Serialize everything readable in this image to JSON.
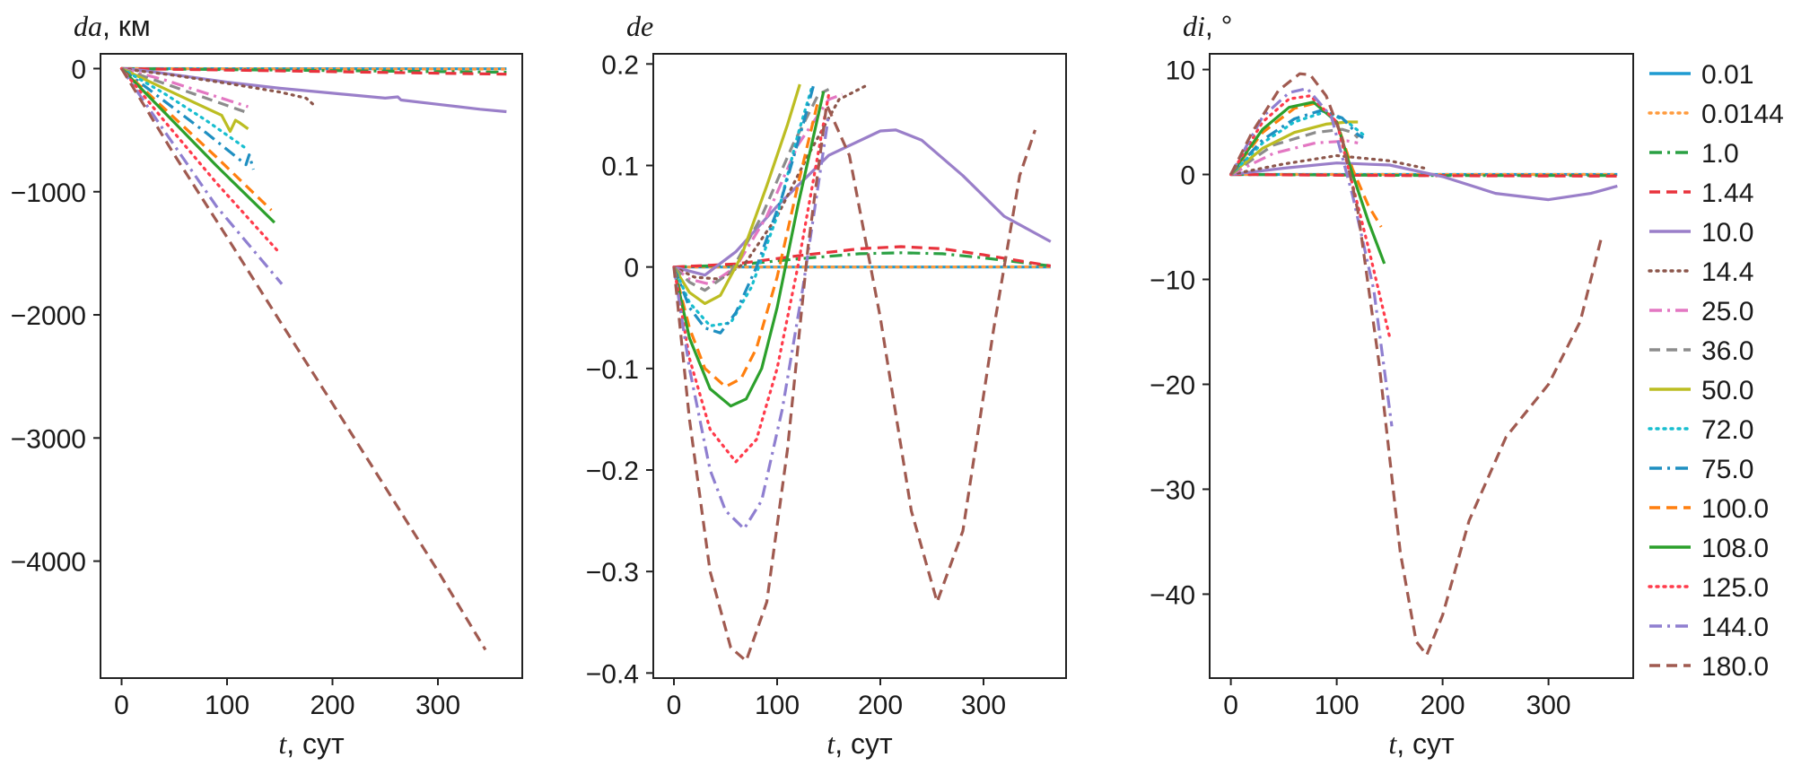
{
  "figure": {
    "legend": [
      {
        "label": "0.01",
        "color": "#1f9bd1",
        "dash": "solid"
      },
      {
        "label": "0.0144",
        "color": "#ff9a3c",
        "dash": "dot"
      },
      {
        "label": "1.0",
        "color": "#2aa043",
        "dash": "dashdot"
      },
      {
        "label": "1.44",
        "color": "#e8323c",
        "dash": "dash"
      },
      {
        "label": "10.0",
        "color": "#9a7fc9",
        "dash": "solid"
      },
      {
        "label": "14.4",
        "color": "#8c564b",
        "dash": "dot"
      },
      {
        "label": "25.0",
        "color": "#e377c2",
        "dash": "dashdot"
      },
      {
        "label": "36.0",
        "color": "#8c8c8c",
        "dash": "dash"
      },
      {
        "label": "50.0",
        "color": "#bcbd22",
        "dash": "solid"
      },
      {
        "label": "72.0",
        "color": "#17becf",
        "dash": "dot"
      },
      {
        "label": "75.0",
        "color": "#1f8fc1",
        "dash": "dashdot"
      },
      {
        "label": "100.0",
        "color": "#ff7f0e",
        "dash": "dash"
      },
      {
        "label": "108.0",
        "color": "#2ca02c",
        "dash": "solid"
      },
      {
        "label": "125.0",
        "color": "#ff3b4b",
        "dash": "dot"
      },
      {
        "label": "144.0",
        "color": "#8f7fd0",
        "dash": "dashdot"
      },
      {
        "label": "180.0",
        "color": "#a05a50",
        "dash": "dash"
      }
    ]
  },
  "chart_data": [
    {
      "type": "line",
      "panel": "da",
      "title_var": "da",
      "title_unit": ", км",
      "xlabel_var": "t",
      "xlabel_unit": ", сут",
      "xlim": [
        -20,
        380
      ],
      "ylim": [
        -4950,
        120
      ],
      "xticks": [
        0,
        100,
        200,
        300
      ],
      "xtick_labels": [
        "0",
        "100",
        "200",
        "300"
      ],
      "yticks": [
        0,
        -1000,
        -2000,
        -3000,
        -4000
      ],
      "ytick_labels": [
        "0",
        "−1000",
        "−2000",
        "−3000",
        "−4000"
      ],
      "series": [
        {
          "name": "0.01",
          "x": [
            0,
            100,
            200,
            365
          ],
          "y": [
            0,
            -1,
            -1,
            -2
          ]
        },
        {
          "name": "0.0144",
          "x": [
            0,
            100,
            200,
            365
          ],
          "y": [
            0,
            -2,
            -3,
            -4
          ]
        },
        {
          "name": "1.0",
          "x": [
            0,
            100,
            200,
            365
          ],
          "y": [
            0,
            -8,
            -16,
            -30
          ]
        },
        {
          "name": "1.44",
          "x": [
            0,
            100,
            200,
            365
          ],
          "y": [
            0,
            -12,
            -25,
            -45
          ]
        },
        {
          "name": "10.0",
          "x": [
            0,
            20,
            50,
            100,
            150,
            200,
            250,
            262,
            265,
            300,
            340,
            365
          ],
          "y": [
            0,
            -15,
            -50,
            -110,
            -160,
            -200,
            -240,
            -230,
            -255,
            -290,
            -330,
            -350
          ]
        },
        {
          "name": "14.4",
          "x": [
            0,
            50,
            100,
            150,
            175,
            183
          ],
          "y": [
            0,
            -55,
            -120,
            -190,
            -240,
            -300
          ]
        },
        {
          "name": "25.0",
          "x": [
            0,
            40,
            80,
            120
          ],
          "y": [
            0,
            -90,
            -200,
            -310
          ]
        },
        {
          "name": "36.0",
          "x": [
            0,
            40,
            80,
            120
          ],
          "y": [
            0,
            -120,
            -240,
            -360
          ]
        },
        {
          "name": "50.0",
          "x": [
            0,
            30,
            60,
            95,
            103,
            108,
            112,
            120
          ],
          "y": [
            0,
            -120,
            -240,
            -380,
            -510,
            -420,
            -440,
            -490
          ]
        },
        {
          "name": "72.0",
          "x": [
            0,
            40,
            80,
            120
          ],
          "y": [
            0,
            -200,
            -420,
            -660
          ]
        },
        {
          "name": "75.0",
          "x": [
            0,
            40,
            80,
            118,
            121,
            125
          ],
          "y": [
            0,
            -260,
            -520,
            -780,
            -700,
            -820
          ]
        },
        {
          "name": "100.0",
          "x": [
            0,
            40,
            90,
            142
          ],
          "y": [
            0,
            -320,
            -720,
            -1150
          ]
        },
        {
          "name": "108.0",
          "x": [
            0,
            40,
            90,
            145
          ],
          "y": [
            0,
            -350,
            -790,
            -1250
          ]
        },
        {
          "name": "125.0",
          "x": [
            0,
            40,
            90,
            148
          ],
          "y": [
            0,
            -420,
            -930,
            -1480
          ]
        },
        {
          "name": "144.0",
          "x": [
            0,
            40,
            90,
            152
          ],
          "y": [
            0,
            -500,
            -1120,
            -1750
          ]
        },
        {
          "name": "180.0",
          "x": [
            0,
            50,
            100,
            150,
            200,
            250,
            300,
            345
          ],
          "y": [
            0,
            -700,
            -1370,
            -2050,
            -2720,
            -3400,
            -4080,
            -4720
          ]
        }
      ]
    },
    {
      "type": "line",
      "panel": "de",
      "title_var": "de",
      "title_unit": "",
      "xlabel_var": "t",
      "xlabel_unit": ", сут",
      "xlim": [
        -20,
        380
      ],
      "ylim": [
        -0.405,
        0.21
      ],
      "xticks": [
        0,
        100,
        200,
        300
      ],
      "xtick_labels": [
        "0",
        "100",
        "200",
        "300"
      ],
      "yticks": [
        0.2,
        0.1,
        0,
        -0.1,
        -0.2,
        -0.3,
        -0.4
      ],
      "ytick_labels": [
        "0.2",
        "0.1",
        "0",
        "−0.1",
        "−0.2",
        "−0.3",
        "−0.4"
      ],
      "series": [
        {
          "name": "0.01",
          "x": [
            0,
            100,
            200,
            365
          ],
          "y": [
            0,
            0,
            0,
            0
          ]
        },
        {
          "name": "0.0144",
          "x": [
            0,
            100,
            200,
            365
          ],
          "y": [
            0,
            0,
            0,
            0.0002
          ]
        },
        {
          "name": "1.0",
          "x": [
            0,
            60,
            120,
            180,
            220,
            260,
            300,
            365
          ],
          "y": [
            0,
            0.002,
            0.008,
            0.013,
            0.014,
            0.013,
            0.009,
            0.001
          ]
        },
        {
          "name": "1.44",
          "x": [
            0,
            60,
            120,
            180,
            220,
            260,
            300,
            365
          ],
          "y": [
            0,
            0.003,
            0.011,
            0.018,
            0.02,
            0.018,
            0.012,
            0.001
          ]
        },
        {
          "name": "10.0",
          "x": [
            0,
            30,
            60,
            100,
            150,
            200,
            215,
            240,
            280,
            320,
            365
          ],
          "y": [
            0,
            -0.008,
            0.015,
            0.06,
            0.11,
            0.134,
            0.135,
            0.125,
            0.09,
            0.05,
            0.025
          ]
        },
        {
          "name": "14.4",
          "x": [
            0,
            20,
            45,
            70,
            100,
            130,
            160,
            185
          ],
          "y": [
            0,
            -0.01,
            -0.012,
            0.005,
            0.05,
            0.11,
            0.165,
            0.178
          ]
        },
        {
          "name": "25.0",
          "x": [
            0,
            15,
            35,
            60,
            90,
            120,
            150,
            163
          ],
          "y": [
            0,
            -0.012,
            -0.017,
            0.0,
            0.05,
            0.12,
            0.165,
            0.17
          ]
        },
        {
          "name": "36.0",
          "x": [
            0,
            15,
            30,
            55,
            85,
            115,
            140,
            150
          ],
          "y": [
            0,
            -0.015,
            -0.023,
            -0.005,
            0.05,
            0.12,
            0.17,
            0.175
          ]
        },
        {
          "name": "50.0",
          "x": [
            0,
            15,
            30,
            45,
            65,
            90,
            110,
            122
          ],
          "y": [
            0,
            -0.025,
            -0.036,
            -0.028,
            0.01,
            0.08,
            0.14,
            0.18
          ]
        },
        {
          "name": "72.0",
          "x": [
            0,
            15,
            35,
            55,
            75,
            100,
            120,
            133
          ],
          "y": [
            0,
            -0.035,
            -0.058,
            -0.055,
            -0.02,
            0.05,
            0.13,
            0.175
          ]
        },
        {
          "name": "75.0",
          "x": [
            0,
            15,
            30,
            45,
            60,
            80,
            105,
            125,
            135
          ],
          "y": [
            0,
            -0.04,
            -0.06,
            -0.065,
            -0.045,
            0.0,
            0.07,
            0.14,
            0.178
          ]
        },
        {
          "name": "100.0",
          "x": [
            0,
            15,
            30,
            50,
            65,
            80,
            100,
            120,
            140
          ],
          "y": [
            0,
            -0.06,
            -0.1,
            -0.118,
            -0.11,
            -0.08,
            -0.01,
            0.08,
            0.165
          ]
        },
        {
          "name": "108.0",
          "x": [
            0,
            15,
            35,
            55,
            70,
            85,
            100,
            120,
            145
          ],
          "y": [
            0,
            -0.07,
            -0.12,
            -0.137,
            -0.13,
            -0.1,
            -0.04,
            0.06,
            0.173
          ]
        },
        {
          "name": "125.0",
          "x": [
            0,
            15,
            35,
            60,
            80,
            100,
            120,
            150
          ],
          "y": [
            0,
            -0.09,
            -0.16,
            -0.192,
            -0.17,
            -0.1,
            0.0,
            0.17
          ]
        },
        {
          "name": "144.0",
          "x": [
            0,
            15,
            35,
            50,
            68,
            85,
            105,
            125,
            150
          ],
          "y": [
            0,
            -0.1,
            -0.2,
            -0.24,
            -0.258,
            -0.23,
            -0.14,
            -0.02,
            0.15
          ]
        },
        {
          "name": "180.0",
          "x": [
            0,
            15,
            35,
            55,
            70,
            90,
            110,
            130,
            148,
            170,
            200,
            230,
            255,
            280,
            310,
            335,
            350
          ],
          "y": [
            0,
            -0.15,
            -0.3,
            -0.375,
            -0.388,
            -0.33,
            -0.18,
            0.02,
            0.16,
            0.11,
            -0.05,
            -0.24,
            -0.33,
            -0.26,
            -0.06,
            0.09,
            0.135
          ]
        }
      ]
    },
    {
      "type": "line",
      "panel": "di",
      "title_var": "di",
      "title_unit": ", °",
      "xlabel_var": "t",
      "xlabel_unit": ", сут",
      "xlim": [
        -20,
        380
      ],
      "ylim": [
        -48,
        11.5
      ],
      "xticks": [
        0,
        100,
        200,
        300
      ],
      "xtick_labels": [
        "0",
        "100",
        "200",
        "300"
      ],
      "yticks": [
        10,
        0,
        -10,
        -20,
        -30,
        -40
      ],
      "ytick_labels": [
        "10",
        "0",
        "−10",
        "−20",
        "−30",
        "−40"
      ],
      "series": [
        {
          "name": "0.01",
          "x": [
            0,
            100,
            200,
            365
          ],
          "y": [
            0,
            0,
            0,
            0
          ]
        },
        {
          "name": "0.0144",
          "x": [
            0,
            100,
            200,
            365
          ],
          "y": [
            0,
            0,
            0,
            0
          ]
        },
        {
          "name": "1.0",
          "x": [
            0,
            100,
            200,
            365
          ],
          "y": [
            0,
            -0.05,
            -0.1,
            -0.1
          ]
        },
        {
          "name": "1.44",
          "x": [
            0,
            100,
            200,
            365
          ],
          "y": [
            0,
            -0.07,
            -0.12,
            -0.15
          ]
        },
        {
          "name": "10.0",
          "x": [
            0,
            50,
            100,
            150,
            200,
            250,
            300,
            340,
            365
          ],
          "y": [
            0,
            0.6,
            1.1,
            0.9,
            -0.2,
            -1.8,
            -2.4,
            -1.8,
            -1.1
          ]
        },
        {
          "name": "14.4",
          "x": [
            0,
            50,
            100,
            150,
            183
          ],
          "y": [
            0,
            1.0,
            1.8,
            1.3,
            0.6
          ]
        },
        {
          "name": "25.0",
          "x": [
            0,
            40,
            80,
            110,
            120
          ],
          "y": [
            0,
            2.0,
            3.0,
            3.2,
            3.0
          ]
        },
        {
          "name": "36.0",
          "x": [
            0,
            40,
            80,
            105,
            115,
            120
          ],
          "y": [
            0,
            2.8,
            4.0,
            4.3,
            4.0,
            3.5
          ]
        },
        {
          "name": "50.0",
          "x": [
            0,
            30,
            60,
            90,
            110,
            120
          ],
          "y": [
            0,
            2.5,
            4.0,
            4.8,
            5.0,
            5.0
          ]
        },
        {
          "name": "72.0",
          "x": [
            0,
            30,
            60,
            90,
            110,
            125
          ],
          "y": [
            0,
            3.0,
            5.0,
            6.0,
            5.0,
            3.8
          ]
        },
        {
          "name": "75.0",
          "x": [
            0,
            30,
            60,
            85,
            105,
            120,
            125
          ],
          "y": [
            0,
            3.3,
            5.3,
            6.1,
            5.4,
            3.8,
            3.5
          ]
        },
        {
          "name": "100.0",
          "x": [
            0,
            30,
            60,
            80,
            100,
            115,
            130,
            142
          ],
          "y": [
            0,
            4.0,
            6.3,
            6.8,
            5.0,
            0.5,
            -3.0,
            -5.0
          ]
        },
        {
          "name": "108.0",
          "x": [
            0,
            30,
            55,
            78,
            100,
            115,
            130,
            145
          ],
          "y": [
            0,
            4.3,
            6.4,
            6.9,
            5.0,
            0.0,
            -4.5,
            -8.5
          ]
        },
        {
          "name": "125.0",
          "x": [
            0,
            30,
            55,
            75,
            100,
            115,
            130,
            150
          ],
          "y": [
            0,
            5.0,
            7.2,
            7.5,
            5.0,
            -1.0,
            -7.0,
            -15.5
          ]
        },
        {
          "name": "144.0",
          "x": [
            0,
            30,
            55,
            72,
            95,
            115,
            135,
            152
          ],
          "y": [
            0,
            5.5,
            7.8,
            8.2,
            5.5,
            -2.0,
            -11.0,
            -24.0
          ]
        },
        {
          "name": "180.0",
          "x": [
            0,
            20,
            45,
            65,
            75,
            90,
            105,
            120,
            140,
            160,
            175,
            185,
            200,
            225,
            260,
            300,
            330,
            350
          ],
          "y": [
            0,
            4.0,
            8.0,
            9.6,
            9.5,
            7.5,
            3.5,
            -3.5,
            -18.0,
            -36.0,
            -44.5,
            -45.8,
            -42.0,
            -33.0,
            -25.0,
            -20.0,
            -14.0,
            -6.0
          ]
        }
      ]
    }
  ]
}
